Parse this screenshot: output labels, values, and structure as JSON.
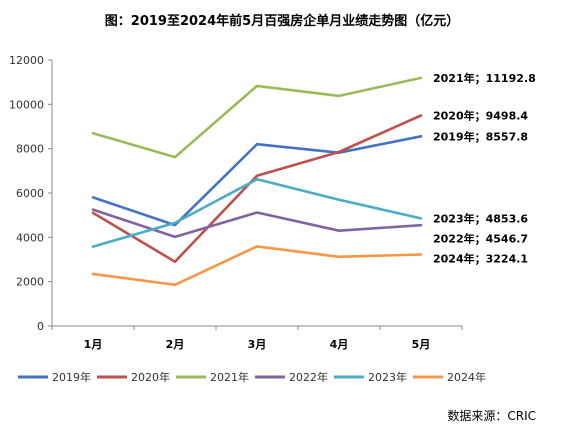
{
  "chart_data": {
    "type": "line",
    "title": "图：2019至2024年前5月百强房企单月业绩走势图（亿元）",
    "categories": [
      "1月",
      "2月",
      "3月",
      "4月",
      "5月"
    ],
    "ylim": [
      0,
      12000
    ],
    "yticks": [
      "0",
      "2000",
      "4000",
      "6000",
      "8000",
      "10000",
      "12000"
    ],
    "grid": false,
    "legend_position": "bottom",
    "series": [
      {
        "name": "2019年",
        "color": "#4472C4",
        "values": [
          5800,
          4550,
          8200,
          7820,
          8557.8
        ],
        "end_label": "2019年；8557.8"
      },
      {
        "name": "2020年",
        "color": "#C0504D",
        "values": [
          5100,
          2900,
          6780,
          7850,
          9498.4
        ],
        "end_label": "2020年；9498.4"
      },
      {
        "name": "2021年",
        "color": "#9BBB59",
        "values": [
          8700,
          7620,
          10830,
          10380,
          11192.8
        ],
        "end_label": "2021年；11192.8"
      },
      {
        "name": "2022年",
        "color": "#8064A2",
        "values": [
          5250,
          4020,
          5120,
          4300,
          4546.7
        ],
        "end_label": "2022年；4546.7"
      },
      {
        "name": "2023年",
        "color": "#4BACC6",
        "values": [
          3580,
          4650,
          6620,
          5700,
          4853.6
        ],
        "end_label": "2023年；4853.6"
      },
      {
        "name": "2024年",
        "color": "#F79646",
        "values": [
          2350,
          1860,
          3590,
          3120,
          3224.1
        ],
        "end_label": "2024年；3224.1"
      }
    ],
    "source": "数据来源：CRIC"
  }
}
